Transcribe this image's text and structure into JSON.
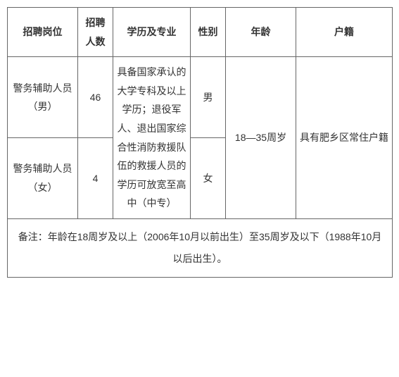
{
  "table": {
    "columns": [
      "招聘岗位",
      "招聘人数",
      "学历及专业",
      "性别",
      "年龄",
      "户籍"
    ],
    "rows": [
      {
        "position": "警务辅助人员（男）",
        "count": "46",
        "education": "具备国家承认的大学专科及以上学历；退役军人、退出国家综合性消防救援队伍的救援人员的学历可放宽至高中（中专）",
        "gender": "男",
        "age": "18—35周岁",
        "residence": "具有肥乡区常住户籍"
      },
      {
        "position": "警务辅助人员（女）",
        "count": "4",
        "gender": "女"
      }
    ],
    "note": "备注：年龄在18周岁及以上（2006年10月以前出生）至35周岁及以下（1988年10月以后出生）。",
    "border_color": "#666666",
    "text_color": "#333333",
    "background_color": "#ffffff",
    "header_fontsize": 14,
    "cell_fontsize": 14,
    "line_height": 1.9
  }
}
